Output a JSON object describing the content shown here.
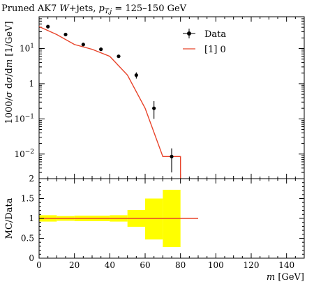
{
  "chart_data": [
    {
      "type": "step-line+errorbar",
      "title": "Pruned AK7 W+jets, p_T,j = 125–150 GeV",
      "title_parts": {
        "pre": "Pruned AK7 ",
        "w": "W",
        "mid": "+jets, ",
        "pt": "p",
        "sub": "T,j",
        "post": " = 125–150 GeV"
      },
      "ylabel": "1000/σ dσ/dm [1/GeV]",
      "ylabel_parts": {
        "pre": "1000/",
        "sigma1": "σ",
        "mid1": " d",
        "sigma2": "σ",
        "mid2": "/d",
        "m": "m",
        "post": " [1/GeV]"
      },
      "yscale": "log",
      "xlim": [
        0,
        150
      ],
      "ylim": [
        0.002,
        80
      ],
      "y_ticks": [
        {
          "value": 0.01,
          "base": "10",
          "exp": "−2"
        },
        {
          "value": 0.1,
          "base": "10",
          "exp": "−1"
        },
        {
          "value": 1,
          "base": "1",
          "exp": ""
        },
        {
          "value": 10,
          "base": "10",
          "exp": "1"
        }
      ],
      "legend_position": "top-right",
      "series": [
        {
          "name": "Data",
          "style": "points",
          "color": "#000000",
          "x": [
            5,
            15,
            25,
            35,
            45,
            55,
            65,
            75
          ],
          "y": [
            42,
            25,
            13,
            9.5,
            6.0,
            1.75,
            0.2,
            0.0085
          ],
          "yerr_low": [
            2,
            1.5,
            0.9,
            0.7,
            0.5,
            0.35,
            0.1,
            0.0055
          ],
          "yerr_high": [
            2,
            1.5,
            0.9,
            0.7,
            0.5,
            0.35,
            0.12,
            0.006
          ]
        },
        {
          "name": "[1] 0",
          "style": "step",
          "color": "#e8432a",
          "bin_edges": [
            0,
            10,
            20,
            30,
            40,
            50,
            60,
            70,
            80
          ],
          "y": [
            42,
            25,
            13,
            9.5,
            6.0,
            1.75,
            0.2,
            0.0085
          ]
        }
      ]
    },
    {
      "type": "ratio",
      "ylabel": "MC/Data",
      "xlabel": "m [GeV]",
      "xlabel_parts": {
        "m": "m",
        "post": " [GeV]"
      },
      "xlim": [
        0,
        150
      ],
      "ylim": [
        0,
        2
      ],
      "x_ticks": [
        0,
        20,
        40,
        60,
        80,
        100,
        120,
        140
      ],
      "y_ticks": [
        0,
        0.5,
        1,
        1.5,
        2
      ],
      "y_tick_labels": [
        "0",
        "0.5",
        "1",
        "1.5",
        "2"
      ],
      "band_color": "#ffff00",
      "bands": [
        {
          "x0": 0,
          "x1": 10,
          "lo": 0.92,
          "hi": 1.08
        },
        {
          "x0": 10,
          "x1": 20,
          "lo": 0.94,
          "hi": 1.06
        },
        {
          "x0": 20,
          "x1": 30,
          "lo": 0.93,
          "hi": 1.07
        },
        {
          "x0": 30,
          "x1": 40,
          "lo": 0.93,
          "hi": 1.07
        },
        {
          "x0": 40,
          "x1": 50,
          "lo": 0.92,
          "hi": 1.08
        },
        {
          "x0": 50,
          "x1": 60,
          "lo": 0.79,
          "hi": 1.21
        },
        {
          "x0": 60,
          "x1": 70,
          "lo": 0.47,
          "hi": 1.5
        },
        {
          "x0": 70,
          "x1": 80,
          "lo": 0.28,
          "hi": 1.72
        }
      ],
      "ratio_line": {
        "x0": 0,
        "x1": 90,
        "value": 1.0,
        "color": "#e8432a"
      }
    }
  ]
}
